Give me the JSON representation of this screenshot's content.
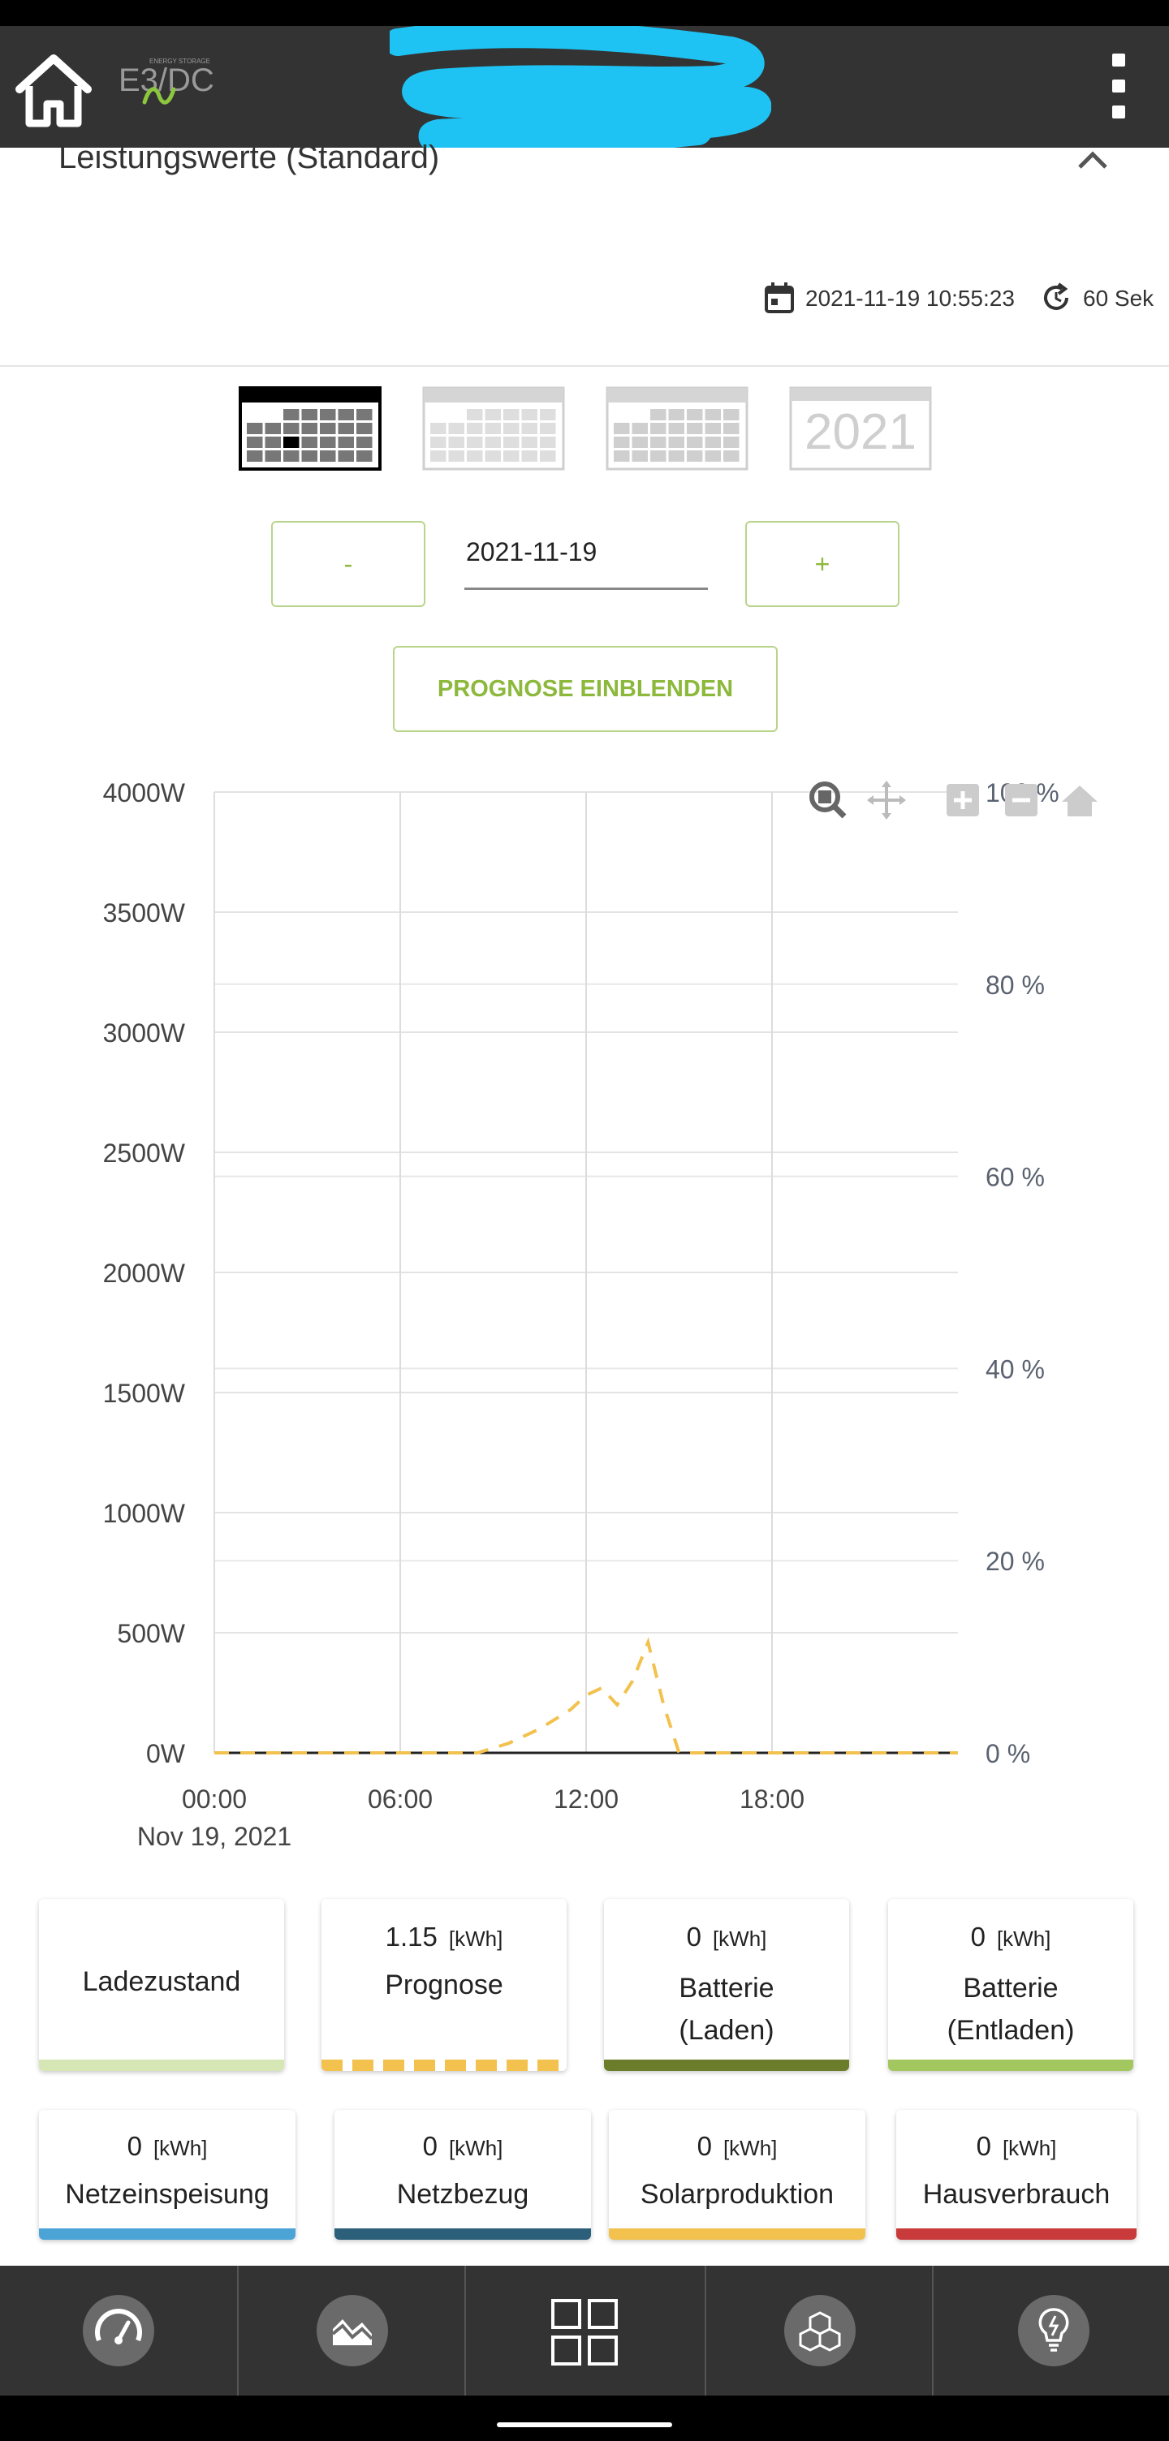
{
  "app": {
    "logo_text": "E3/DC",
    "logo_subtext": "ENERGY STORAGE"
  },
  "section": {
    "title": "Leistungswerte (Standard)",
    "timestamp": "2021-11-19 10:55:23",
    "refresh_interval": "60 Sek"
  },
  "period_selector": {
    "options": [
      "day",
      "week",
      "month",
      "year"
    ],
    "selected": "day",
    "year_label": "2021"
  },
  "date_nav": {
    "prev_label": "-",
    "date_value": "2021-11-19",
    "next_label": "+"
  },
  "prognose_button": "PROGNOSE EINBLENDEN",
  "chart_data": {
    "type": "line",
    "x_ticks": [
      "00:00",
      "06:00",
      "12:00",
      "18:00"
    ],
    "x_sublabel": "Nov 19, 2021",
    "y_left_ticks": [
      "4000W",
      "3500W",
      "3000W",
      "2500W",
      "2000W",
      "1500W",
      "1000W",
      "500W",
      "0W"
    ],
    "y_left_range": [
      0,
      4000
    ],
    "y_right_ticks": [
      "100 %",
      "80 %",
      "60 %",
      "40 %",
      "20 %",
      "0 %"
    ],
    "y_right_range": [
      0,
      100
    ],
    "x_range_hours": [
      0,
      24
    ],
    "grid": true,
    "series": [
      {
        "name": "Prognose",
        "style": "dashed",
        "color": "#f2c14e",
        "x": [
          0,
          7.5,
          8.5,
          9.5,
          10.5,
          11.5,
          12.0,
          12.5,
          13.0,
          13.5,
          14.0,
          14.5,
          15.0,
          24.0
        ],
        "y": [
          0,
          0,
          0,
          40,
          100,
          180,
          240,
          270,
          200,
          300,
          460,
          200,
          0,
          0
        ]
      }
    ],
    "toolbar_icons": [
      "zoom-icon",
      "pan-icon",
      "zoom-in-icon",
      "zoom-out-icon",
      "reset-home-icon"
    ]
  },
  "kpi_cards": [
    {
      "value": "",
      "unit": "",
      "label": "Ladezustand",
      "color": "#d6e6b5",
      "pattern": "solid"
    },
    {
      "value": "1.15",
      "unit": "[kWh]",
      "label": "Prognose",
      "color": "#f2c14e",
      "pattern": "dashed"
    },
    {
      "value": "0",
      "unit": "[kWh]",
      "label": "Batterie (Laden)",
      "color": "#6b7d2a",
      "pattern": "solid"
    },
    {
      "value": "0",
      "unit": "[kWh]",
      "label": "Batterie (Entladen)",
      "color": "#a3c75f",
      "pattern": "solid"
    },
    {
      "value": "0",
      "unit": "[kWh]",
      "label": "Netzeinspeisung",
      "color": "#4ca3d6",
      "pattern": "solid"
    },
    {
      "value": "0",
      "unit": "[kWh]",
      "label": "Netzbezug",
      "color": "#2b5f7a",
      "pattern": "solid"
    },
    {
      "value": "0",
      "unit": "[kWh]",
      "label": "Solarproduktion",
      "color": "#f2c14e",
      "pattern": "solid"
    },
    {
      "value": "0",
      "unit": "[kWh]",
      "label": "Hausverbrauch",
      "color": "#c93a3a",
      "pattern": "solid"
    }
  ],
  "bottom_nav": [
    "dashboard-gauge-icon",
    "chart-area-icon",
    "grid-tiles-icon",
    "cubes-icon",
    "lightbulb-icon"
  ],
  "colors": {
    "appbar": "#333333",
    "accent_green": "#8cb83c",
    "accent_border": "#b9d58c"
  }
}
